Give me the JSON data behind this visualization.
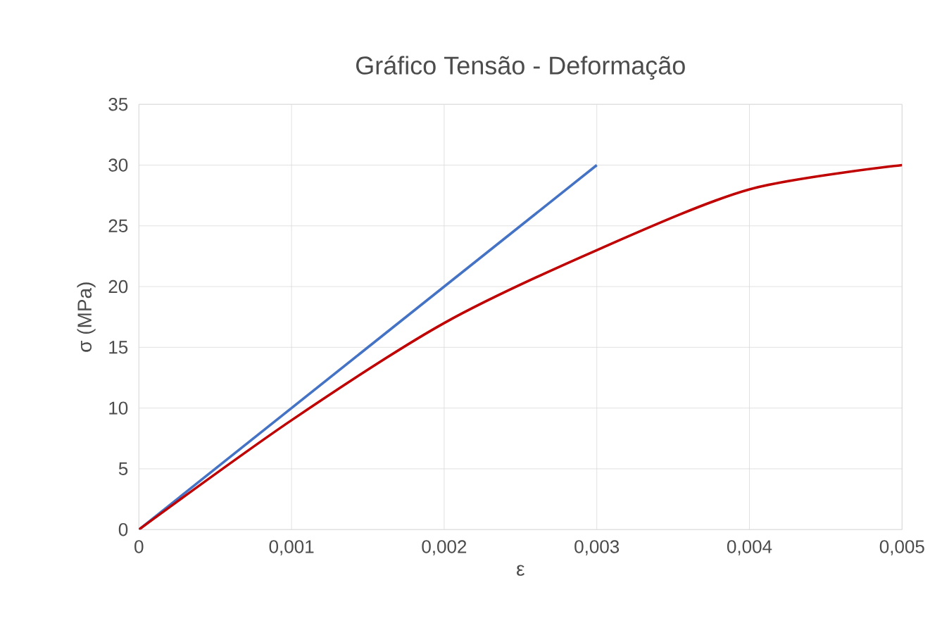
{
  "chart_data": {
    "type": "line",
    "title": "Gráfico Tensão - Deformação",
    "xlabel": "ε",
    "ylabel": "σ (MPa)",
    "series": [
      {
        "color": "#4472c4",
        "x": [
          0,
          0.003
        ],
        "values": [
          0,
          30
        ]
      },
      {
        "color": "#c00000",
        "x": [
          0,
          0.001,
          0.002,
          0.003,
          0.004,
          0.005
        ],
        "values": [
          0,
          9,
          17,
          23,
          28,
          30
        ]
      }
    ],
    "xlim": [
      0,
      0.005
    ],
    "ylim": [
      0,
      35
    ],
    "xticks": [
      0,
      {
        "value": 0.001,
        "label": "0,001"
      },
      {
        "value": 0.002,
        "label": "0,002"
      },
      {
        "value": 0.003,
        "label": "0,003"
      },
      {
        "value": 0.004,
        "label": "0,004"
      },
      {
        "value": 0.005,
        "label": "0,005"
      }
    ],
    "yticks": [
      0,
      5,
      10,
      15,
      20,
      25,
      30,
      35
    ],
    "grid": true,
    "legend": false,
    "marker": "none",
    "line_style": "solid"
  }
}
